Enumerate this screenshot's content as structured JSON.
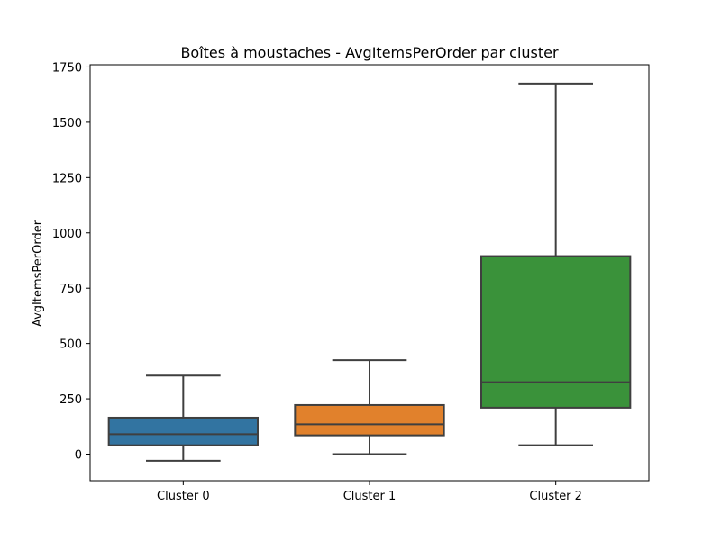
{
  "chart_data": {
    "type": "box",
    "title": "Boîtes à moustaches - AvgItemsPerOrder par cluster",
    "xlabel": "",
    "ylabel": "AvgItemsPerOrder",
    "ylim": [
      -120,
      1760
    ],
    "yticks": [
      0,
      250,
      500,
      750,
      1000,
      1250,
      1500,
      1750
    ],
    "grid": false,
    "categories": [
      "Cluster 0",
      "Cluster 1",
      "Cluster 2"
    ],
    "boxes": [
      {
        "category": "Cluster 0",
        "whisker_low": -30,
        "q1": 40,
        "median": 90,
        "q3": 165,
        "whisker_high": 355,
        "color": "#3274a1"
      },
      {
        "category": "Cluster 1",
        "whisker_low": 0,
        "q1": 85,
        "median": 135,
        "q3": 222,
        "whisker_high": 425,
        "color": "#e1812c"
      },
      {
        "category": "Cluster 2",
        "whisker_low": 40,
        "q1": 210,
        "median": 325,
        "q3": 895,
        "whisker_high": 1675,
        "color": "#3a923a"
      }
    ]
  }
}
